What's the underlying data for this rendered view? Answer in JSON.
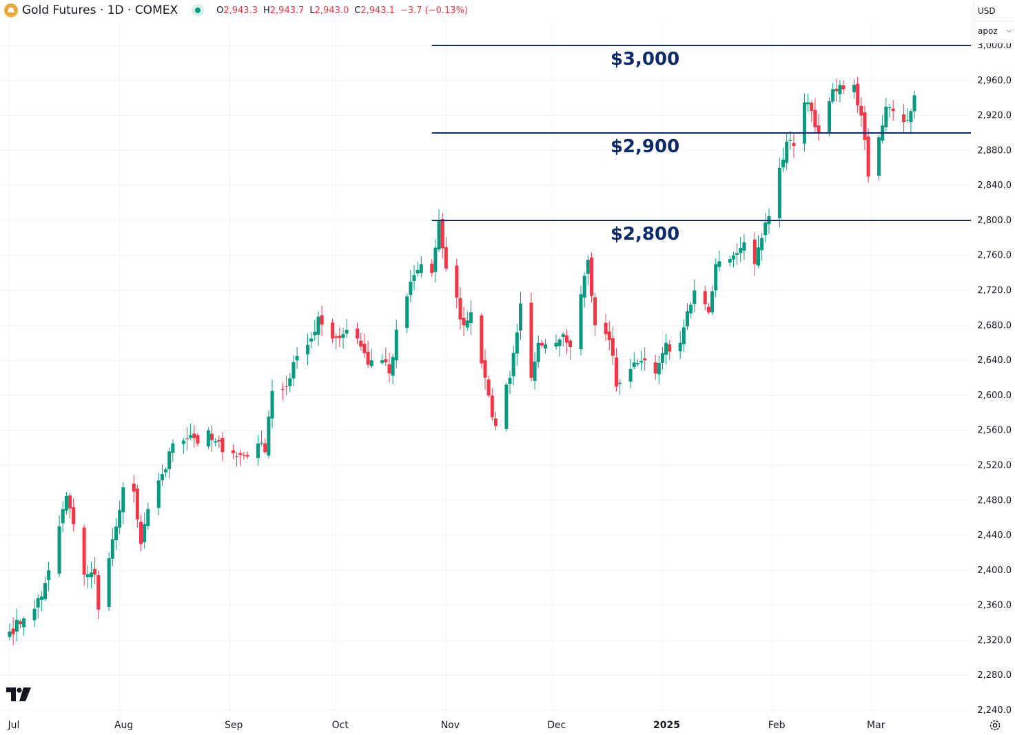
{
  "header": {
    "symbol_title": "Gold Futures · 1D · COMEX",
    "ohlc": [
      {
        "key": "O",
        "value": "2,943.3"
      },
      {
        "key": "H",
        "value": "2,943.7"
      },
      {
        "key": "L",
        "value": "2,943.0"
      },
      {
        "key": "C",
        "value": "2,943.1"
      }
    ],
    "change": "−3.7 (−0.13%)",
    "logo_icon": "gold-bars-icon",
    "status_icon": "market-open-dot-icon"
  },
  "price_scale": {
    "currency": "USD",
    "unit_label": "apoz",
    "chevron_icon": "chevron-down-icon"
  },
  "footer": {
    "brand_icon": "tradingview-logo-icon",
    "settings_icon": "settings-gear-icon"
  },
  "colors": {
    "up": "#089981",
    "down": "#f23645",
    "level_line": "#0d2a6b",
    "level_text": "#0d2a6b",
    "grid": "#f0f3fa",
    "axis_text": "#131722"
  },
  "chart_data": {
    "type": "candlestick",
    "title": "Gold Futures · 1D · COMEX",
    "currency": "USD",
    "ylim": [
      2240,
      3000
    ],
    "y_ticks": [
      {
        "value": 3000,
        "label": "3,000.0"
      },
      {
        "value": 2960,
        "label": "2,960.0"
      },
      {
        "value": 2920,
        "label": "2,920.0"
      },
      {
        "value": 2880,
        "label": "2,880.0"
      },
      {
        "value": 2840,
        "label": "2,840.0"
      },
      {
        "value": 2800,
        "label": "2,800.0"
      },
      {
        "value": 2760,
        "label": "2,760.0"
      },
      {
        "value": 2720,
        "label": "2,720.0"
      },
      {
        "value": 2680,
        "label": "2,680.0"
      },
      {
        "value": 2640,
        "label": "2,640.0"
      },
      {
        "value": 2600,
        "label": "2,600.0"
      },
      {
        "value": 2560,
        "label": "2,560.0"
      },
      {
        "value": 2520,
        "label": "2,520.0"
      },
      {
        "value": 2480,
        "label": "2,480.0"
      },
      {
        "value": 2440,
        "label": "2,440.0"
      },
      {
        "value": 2400,
        "label": "2,400.0"
      },
      {
        "value": 2360,
        "label": "2,360.0"
      },
      {
        "value": 2320,
        "label": "2,320.0"
      },
      {
        "value": 2280,
        "label": "2,280.0"
      },
      {
        "value": 2240,
        "label": "2,240.0"
      }
    ],
    "x_ticks": [
      {
        "date": "2024-07-01",
        "label": "Jul",
        "bold": false
      },
      {
        "date": "2024-08-01",
        "label": "Aug",
        "bold": false
      },
      {
        "date": "2024-09-01",
        "label": "Sep",
        "bold": false
      },
      {
        "date": "2024-10-01",
        "label": "Oct",
        "bold": false
      },
      {
        "date": "2024-11-01",
        "label": "Nov",
        "bold": false
      },
      {
        "date": "2024-12-01",
        "label": "Dec",
        "bold": false
      },
      {
        "date": "2025-01-01",
        "label": "2025",
        "bold": true
      },
      {
        "date": "2025-02-01",
        "label": "Feb",
        "bold": false
      },
      {
        "date": "2025-03-01",
        "label": "Mar",
        "bold": false
      }
    ],
    "x_range": [
      "2024-07-01",
      "2025-03-26"
    ],
    "horizontal_levels": [
      {
        "value": 3000,
        "label": "$3,000",
        "start_date": "2024-10-28"
      },
      {
        "value": 2900,
        "label": "$2,900",
        "start_date": "2024-10-28"
      },
      {
        "value": 2800,
        "label": "$2,800",
        "start_date": "2024-10-28"
      }
    ],
    "grid": true,
    "legend": "none",
    "anchors": [
      [
        "2024-07-01",
        2330
      ],
      [
        "2024-07-05",
        2345
      ],
      [
        "2024-07-10",
        2370
      ],
      [
        "2024-07-12",
        2400
      ],
      [
        "2024-07-16",
        2470
      ],
      [
        "2024-07-17",
        2485
      ],
      [
        "2024-07-22",
        2395
      ],
      [
        "2024-07-25",
        2395
      ],
      [
        "2024-07-26",
        2355
      ],
      [
        "2024-07-31",
        2450
      ],
      [
        "2024-08-02",
        2495
      ],
      [
        "2024-08-05",
        2490
      ],
      [
        "2024-08-07",
        2430
      ],
      [
        "2024-08-09",
        2470
      ],
      [
        "2024-08-13",
        2510
      ],
      [
        "2024-08-16",
        2545
      ],
      [
        "2024-08-20",
        2550
      ],
      [
        "2024-08-23",
        2545
      ],
      [
        "2024-08-26",
        2560
      ],
      [
        "2024-08-30",
        2535
      ],
      [
        "2024-09-03",
        2530
      ],
      [
        "2024-09-06",
        2530
      ],
      [
        "2024-09-09",
        2545
      ],
      [
        "2024-09-11",
        2535
      ],
      [
        "2024-09-13",
        2605
      ],
      [
        "2024-09-17",
        2610
      ],
      [
        "2024-09-20",
        2645
      ],
      [
        "2024-09-24",
        2665
      ],
      [
        "2024-09-26",
        2690
      ],
      [
        "2024-09-30",
        2665
      ],
      [
        "2024-10-03",
        2670
      ],
      [
        "2024-10-07",
        2665
      ],
      [
        "2024-10-10",
        2635
      ],
      [
        "2024-10-11",
        2640
      ],
      [
        "2024-10-14",
        2640
      ],
      [
        "2024-10-16",
        2625
      ],
      [
        "2024-10-18",
        2675
      ],
      [
        "2024-10-22",
        2730
      ],
      [
        "2024-10-25",
        2750
      ],
      [
        "2024-10-28",
        2740
      ],
      [
        "2024-10-30",
        2800
      ],
      [
        "2024-11-01",
        2745
      ],
      [
        "2024-11-06",
        2680
      ],
      [
        "2024-11-08",
        2695
      ],
      [
        "2024-11-12",
        2620
      ],
      [
        "2024-11-14",
        2575
      ],
      [
        "2024-11-15",
        2565
      ],
      [
        "2024-11-19",
        2620
      ],
      [
        "2024-11-22",
        2705
      ],
      [
        "2024-11-25",
        2620
      ],
      [
        "2024-11-27",
        2660
      ],
      [
        "2024-12-02",
        2660
      ],
      [
        "2024-12-04",
        2670
      ],
      [
        "2024-12-06",
        2655
      ],
      [
        "2024-12-11",
        2755
      ],
      [
        "2024-12-13",
        2680
      ],
      [
        "2024-12-16",
        2670
      ],
      [
        "2024-12-18",
        2645
      ],
      [
        "2024-12-19",
        2610
      ],
      [
        "2024-12-23",
        2630
      ],
      [
        "2024-12-27",
        2640
      ],
      [
        "2024-12-30",
        2625
      ],
      [
        "2025-01-02",
        2660
      ],
      [
        "2025-01-03",
        2650
      ],
      [
        "2025-01-06",
        2660
      ],
      [
        "2025-01-10",
        2720
      ],
      [
        "2025-01-14",
        2695
      ],
      [
        "2025-01-16",
        2750
      ],
      [
        "2025-01-21",
        2760
      ],
      [
        "2025-01-24",
        2775
      ],
      [
        "2025-01-27",
        2750
      ],
      [
        "2025-01-29",
        2780
      ],
      [
        "2025-01-31",
        2805
      ],
      [
        "2025-02-03",
        2860
      ],
      [
        "2025-02-05",
        2890
      ],
      [
        "2025-02-07",
        2885
      ],
      [
        "2025-02-10",
        2935
      ],
      [
        "2025-02-11",
        2935
      ],
      [
        "2025-02-12",
        2925
      ],
      [
        "2025-02-14",
        2900
      ],
      [
        "2025-02-18",
        2950
      ],
      [
        "2025-02-20",
        2955
      ],
      [
        "2025-02-21",
        2950
      ],
      [
        "2025-02-24",
        2955
      ],
      [
        "2025-02-26",
        2920
      ],
      [
        "2025-02-28",
        2850
      ],
      [
        "2025-03-03",
        2895
      ],
      [
        "2025-03-05",
        2930
      ],
      [
        "2025-03-07",
        2925
      ],
      [
        "2025-03-11",
        2915
      ],
      [
        "2025-03-12",
        2925
      ],
      [
        "2025-03-13",
        2943
      ]
    ]
  }
}
